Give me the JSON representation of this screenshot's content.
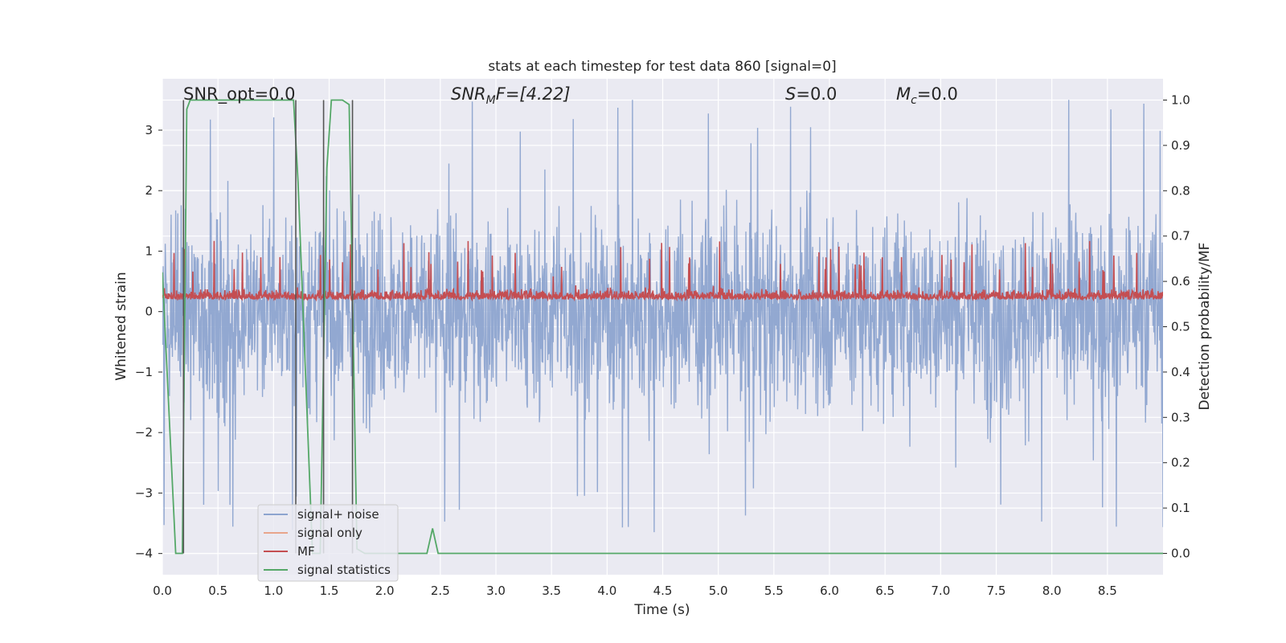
{
  "chart_data": {
    "type": "line",
    "title": "stats at each timestep for test data 860 [signal=0]",
    "xlabel": "Time (s)",
    "ylabel_left": "Whitened strain",
    "ylabel_right": "Detection probability/MF",
    "xlim": [
      0.0,
      9.0
    ],
    "ylim_left": [
      -4.35,
      3.85
    ],
    "ylim_right": [
      -0.047,
      1.047
    ],
    "x_ticks": [
      "0.0",
      "0.5",
      "1.0",
      "1.5",
      "2.0",
      "2.5",
      "3.0",
      "3.5",
      "4.0",
      "4.5",
      "5.0",
      "5.5",
      "6.0",
      "6.5",
      "7.0",
      "7.5",
      "8.0",
      "8.5"
    ],
    "y_ticks_left": [
      "3",
      "2",
      "1",
      "0",
      "−1",
      "−2",
      "−3",
      "−4"
    ],
    "y_ticks_right": [
      "1.0",
      "0.9",
      "0.8",
      "0.7",
      "0.6",
      "0.5",
      "0.4",
      "0.3",
      "0.2",
      "0.1",
      "0.0"
    ],
    "grid": true,
    "legend_position": "lower-left",
    "annotations": {
      "snr_opt": "SNR_opt=0.0",
      "snr_mf_main": "SNR",
      "snr_mf_sub": "M",
      "snr_mf_rest": "F=[4.22]",
      "s_main": "S",
      "s_rest": "=0.0",
      "mc_main": "M",
      "mc_sub": "c",
      "mc_rest": "=0.0"
    },
    "series": [
      {
        "name": "signal+ noise",
        "axis": "left",
        "color": "#8da4cf",
        "description_stats": {
          "mean": 0.0,
          "band": [
            -1.8,
            1.3
          ],
          "extreme_peaks": [
            3.5,
            -4.0
          ]
        }
      },
      {
        "name": "signal only",
        "axis": "left",
        "color": "#e8a58b",
        "values": [
          0.0
        ]
      },
      {
        "name": "MF",
        "axis": "right",
        "color": "#c44e52",
        "level": {
          "baseline": 0.56,
          "band": [
            0.54,
            0.61
          ],
          "peak": 0.69
        }
      },
      {
        "name": "signal statistics",
        "axis": "right",
        "color": "#55a868",
        "x": [
          0.0,
          0.12,
          0.18,
          0.22,
          0.25,
          1.18,
          1.22,
          1.35,
          1.42,
          1.48,
          1.52,
          1.62,
          1.68,
          1.75,
          1.82,
          2.38,
          2.43,
          2.48,
          9.0
        ],
        "y": [
          0.62,
          0.0,
          0.0,
          0.98,
          1.0,
          1.0,
          0.82,
          0.0,
          0.0,
          0.85,
          1.0,
          1.0,
          0.99,
          0.01,
          0.0,
          0.0,
          0.055,
          0.0,
          0.0
        ]
      }
    ],
    "vertical_markers_x": [
      0.19,
      1.2,
      1.45,
      1.71
    ]
  }
}
